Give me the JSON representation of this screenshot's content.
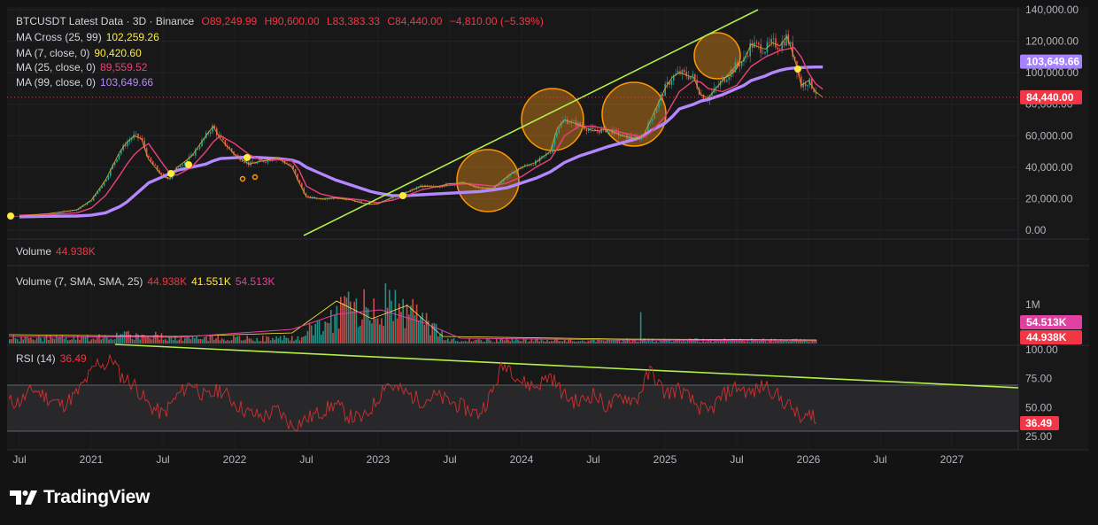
{
  "header": {
    "symbol": "BTCUSDT Latest Data · 3D · Binance",
    "o": "O89,249.99",
    "h": "H90,600.00",
    "l": "L83,383.33",
    "c": "C84,440.00",
    "change": "−4,810.00 (−5.39%)"
  },
  "indicators": [
    {
      "label": "MA Cross (25, 99)",
      "value": "102,259.26",
      "color": "#ffeb3b"
    },
    {
      "label": "MA (7, close, 0)",
      "value": "90,420.60",
      "color": "#ffeb3b"
    },
    {
      "label": "MA (25, close, 0)",
      "value": "89,559.52",
      "color": "#ec407a"
    },
    {
      "label": "MA (99, close, 0)",
      "value": "103,649.66",
      "color": "#b388ff"
    }
  ],
  "volume_pane": {
    "label": "Volume",
    "value": "44.938K",
    "sma_label": "Volume (7, SMA, SMA, 25)",
    "v1": "44.938K",
    "v2": "41.551K",
    "v3": "54.513K"
  },
  "rsi_pane": {
    "label": "RSI (14)",
    "value": "36.49"
  },
  "price_badges": [
    {
      "text": "103,649.66",
      "color": "#a682ff",
      "value": 103649.66
    },
    {
      "text": "84,440.00",
      "color": "#f23645",
      "value": 84440
    }
  ],
  "volume_badges": [
    {
      "text": "54.513K",
      "color": "#e040a0"
    },
    {
      "text": "44.938K",
      "color": "#f23645"
    }
  ],
  "rsi_badge": {
    "text": "36.49",
    "color": "#f23645",
    "value": 36.49
  },
  "footer": {
    "brand": "TradingView"
  },
  "chart_data": [
    {
      "type": "line",
      "pane": "price",
      "price_axis_ticks": [
        "140,000.00",
        "120,000.00",
        "100,000.00",
        "80,000.00",
        "60,000.00",
        "40,000.00",
        "20,000.00",
        "0.00"
      ],
      "ylim": [
        0,
        140000
      ],
      "x_ticks": [
        "Jul",
        "2021",
        "Jul",
        "2022",
        "Jul",
        "2023",
        "Jul",
        "2024",
        "Jul",
        "2025",
        "Jul",
        "2026",
        "Jul",
        "2027"
      ],
      "x": [
        2020.5,
        2020.7,
        2020.9,
        2021.0,
        2021.1,
        2021.2,
        2021.25,
        2021.3,
        2021.35,
        2021.4,
        2021.5,
        2021.55,
        2021.6,
        2021.7,
        2021.8,
        2021.85,
        2021.9,
        2022.0,
        2022.1,
        2022.2,
        2022.3,
        2022.4,
        2022.45,
        2022.5,
        2022.6,
        2022.7,
        2022.8,
        2022.9,
        2022.95,
        2023.0,
        2023.1,
        2023.2,
        2023.3,
        2023.4,
        2023.5,
        2023.6,
        2023.7,
        2023.8,
        2023.9,
        2024.0,
        2024.1,
        2024.2,
        2024.25,
        2024.3,
        2024.4,
        2024.5,
        2024.6,
        2024.7,
        2024.8,
        2024.85,
        2024.9,
        2025.0,
        2025.05,
        2025.1,
        2025.2,
        2025.25,
        2025.3,
        2025.4,
        2025.5,
        2025.55,
        2025.6,
        2025.7,
        2025.75,
        2025.8,
        2025.85,
        2025.9,
        2025.95,
        2026.0,
        2026.05,
        2026.1
      ],
      "series": [
        {
          "values": [
            9000,
            10500,
            13000,
            19000,
            32000,
            50000,
            56000,
            60000,
            58000,
            45000,
            34000,
            33000,
            40000,
            47000,
            60000,
            66000,
            58000,
            48000,
            42000,
            44000,
            46000,
            40000,
            30000,
            21000,
            20000,
            20500,
            19500,
            17000,
            16500,
            16800,
            21000,
            24000,
            28000,
            27500,
            29500,
            30000,
            27000,
            26500,
            34000,
            40000,
            43000,
            50000,
            65000,
            70000,
            67000,
            63000,
            64000,
            60000,
            58000,
            60000,
            70000,
            90000,
            97000,
            100000,
            97000,
            86000,
            84000,
            95000,
            105000,
            108000,
            118000,
            115000,
            119000,
            117000,
            123000,
            110000,
            92000,
            95000,
            88000,
            84440
          ]
        },
        {
          "values": [
            9500,
            10000,
            11000,
            14000,
            22000,
            35000,
            42000,
            48000,
            52000,
            55000,
            42000,
            36000,
            35000,
            40000,
            50000,
            56000,
            60000,
            55000,
            48000,
            44000,
            45000,
            44000,
            38000,
            28000,
            23000,
            21000,
            20000,
            19000,
            18000,
            17500,
            19000,
            22000,
            25500,
            27500,
            28500,
            29500,
            29000,
            28000,
            30000,
            34000,
            40000,
            45000,
            52000,
            60000,
            66000,
            66000,
            64000,
            62000,
            60000,
            59000,
            62000,
            72000,
            80000,
            88000,
            95000,
            94000,
            90000,
            88000,
            92000,
            98000,
            104000,
            110000,
            112000,
            114000,
            115000,
            116000,
            110000,
            100000,
            93000,
            89560
          ]
        },
        {
          "values": [
            8500,
            8800,
            9000,
            9500,
            11000,
            15000,
            18000,
            22000,
            26000,
            30000,
            34000,
            36000,
            38000,
            40000,
            42000,
            44000,
            45500,
            46000,
            46500,
            46000,
            45500,
            44500,
            43000,
            40000,
            36000,
            32000,
            29000,
            26000,
            24500,
            23500,
            22000,
            22000,
            22500,
            23000,
            23500,
            24000,
            24500,
            25500,
            27000,
            30000,
            33000,
            37000,
            40000,
            43000,
            47000,
            50000,
            53000,
            55500,
            58000,
            60000,
            63000,
            68000,
            72000,
            77000,
            80000,
            82000,
            83000,
            86000,
            90000,
            92000,
            95000,
            98000,
            100000,
            101500,
            102500,
            103000,
            103300,
            103500,
            103600,
            103650
          ]
        }
      ]
    },
    {
      "type": "bar",
      "pane": "volume",
      "ytick": "1M"
    },
    {
      "type": "line",
      "pane": "rsi",
      "ylim": [
        25,
        100
      ],
      "rsi_axis_ticks": [
        "100.00",
        "75.00",
        "50.00",
        "25.00"
      ],
      "x": [
        2020.5,
        2020.6,
        2020.7,
        2020.8,
        2020.9,
        2021.0,
        2021.05,
        2021.1,
        2021.15,
        2021.2,
        2021.3,
        2021.4,
        2021.5,
        2021.6,
        2021.7,
        2021.8,
        2021.9,
        2022.0,
        2022.1,
        2022.2,
        2022.3,
        2022.4,
        2022.5,
        2022.6,
        2022.7,
        2022.8,
        2022.9,
        2023.0,
        2023.05,
        2023.1,
        2023.2,
        2023.3,
        2023.4,
        2023.5,
        2023.6,
        2023.7,
        2023.8,
        2023.85,
        2023.9,
        2024.0,
        2024.1,
        2024.2,
        2024.3,
        2024.4,
        2024.5,
        2024.6,
        2024.7,
        2024.8,
        2024.85,
        2024.9,
        2025.0,
        2025.1,
        2025.2,
        2025.3,
        2025.4,
        2025.5,
        2025.6,
        2025.7,
        2025.8,
        2025.9,
        2025.95,
        2026.0,
        2026.05,
        2026.1
      ],
      "values": [
        55,
        66,
        58,
        52,
        62,
        80,
        90,
        86,
        93,
        78,
        70,
        52,
        44,
        60,
        72,
        58,
        66,
        54,
        45,
        42,
        48,
        34,
        40,
        46,
        53,
        42,
        40,
        58,
        72,
        68,
        62,
        56,
        60,
        55,
        50,
        44,
        64,
        82,
        88,
        72,
        68,
        78,
        60,
        54,
        62,
        50,
        60,
        56,
        70,
        82,
        62,
        66,
        54,
        45,
        60,
        68,
        62,
        70,
        58,
        48,
        38,
        42,
        52,
        36.49
      ]
    }
  ]
}
